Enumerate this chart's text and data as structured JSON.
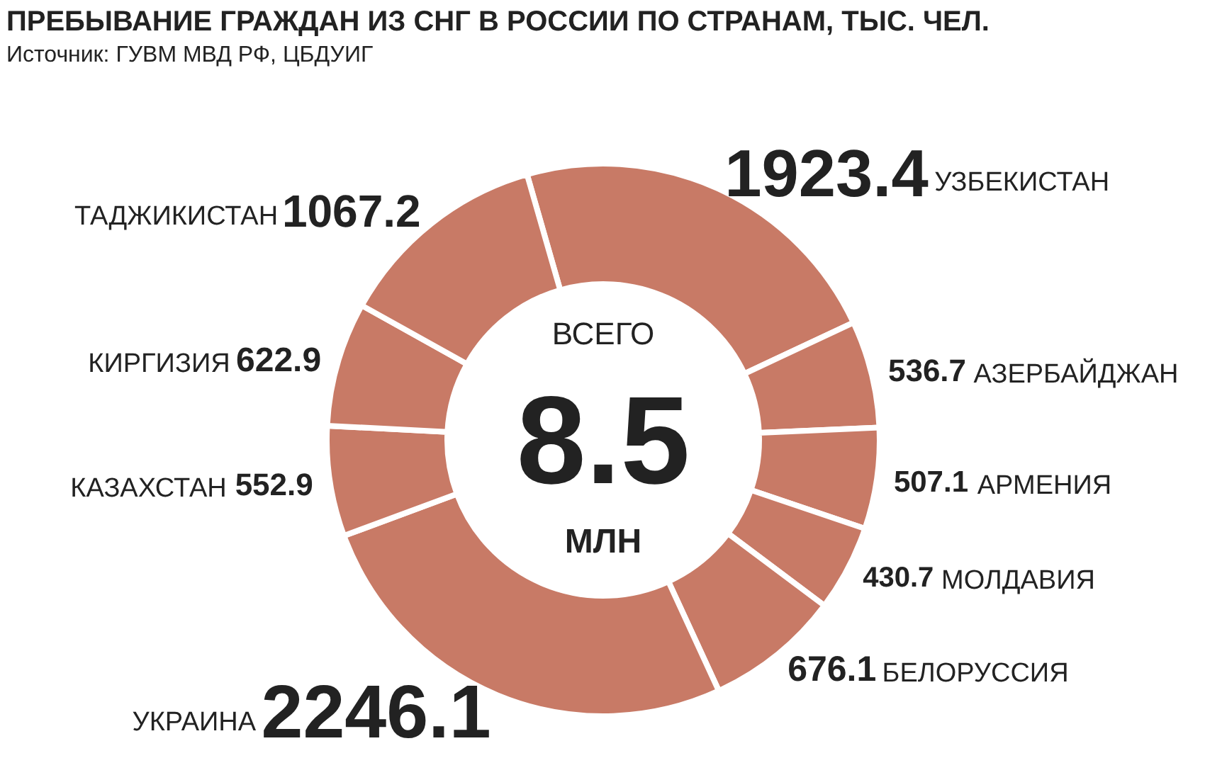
{
  "chart_data": {
    "type": "donut",
    "title": "ПРЕБЫВАНИЕ ГРАЖДАН ИЗ СНГ В РОССИИ ПО СТРАНАМ, ТЫС. ЧЕЛ.",
    "subtitle": "Источник: ГУВМ МВД РФ, ЦБДУИГ",
    "categories": [
      "УЗБЕКИСТАН",
      "АЗЕРБАЙДЖАН",
      "АРМЕНИЯ",
      "МОЛДАВИЯ",
      "БЕЛОРУССИЯ",
      "УКРАИНА",
      "КАЗАХСТАН",
      "КИРГИЗИЯ",
      "ТАДЖИКИСТАН"
    ],
    "values": [
      1923.4,
      536.7,
      507.1,
      430.7,
      676.1,
      2246.1,
      552.9,
      622.9,
      1067.2
    ],
    "colors": [
      "#c87a66",
      "#c87a66",
      "#c87a66",
      "#c87a66",
      "#c87a66",
      "#c87a66",
      "#c87a66",
      "#c87a66",
      "#c87a66"
    ],
    "data_labels": true,
    "annotations": [
      "ВСЕГО",
      "8.5",
      "МЛН"
    ]
  }
}
